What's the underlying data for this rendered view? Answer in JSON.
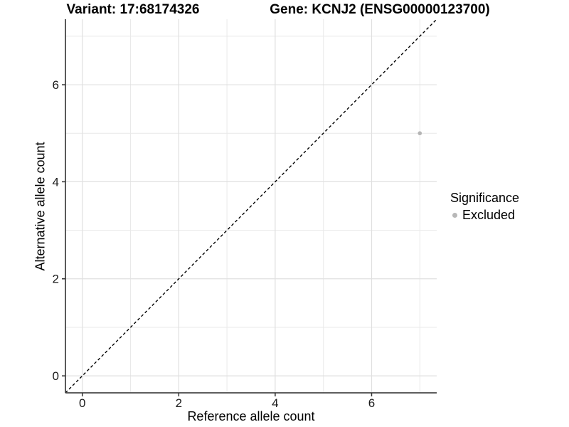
{
  "chart_data": {
    "type": "scatter",
    "title_left": "Variant: 17:68174326",
    "title_right": "Gene: KCNJ2 (ENSG00000123700)",
    "xlabel": "Reference allele count",
    "ylabel": "Alternative allele count",
    "xlim": [
      -0.35,
      7.35
    ],
    "ylim": [
      -0.35,
      7.35
    ],
    "xticks": [
      0,
      2,
      4,
      6
    ],
    "yticks": [
      0,
      2,
      4,
      6
    ],
    "minor_xticks": [
      1,
      3,
      5,
      7
    ],
    "minor_yticks": [
      1,
      3,
      5,
      7
    ],
    "grid": "major+minor",
    "series": [
      {
        "name": "Excluded",
        "color": "#b5b5b5",
        "points": [
          {
            "x": 7,
            "y": 5
          }
        ]
      }
    ],
    "reference_line": {
      "kind": "identity",
      "slope": 1,
      "intercept": 0,
      "linetype": "dashed",
      "color": "#000000"
    },
    "legend": {
      "title": "Significance",
      "position": "right",
      "entries": [
        {
          "label": "Excluded",
          "color": "#b8b8b8"
        }
      ]
    }
  },
  "colors": {
    "background": "#ffffff",
    "grid_major": "#e0e0e0",
    "grid_minor": "#e9e9e9",
    "axis_line": "#474747",
    "tick_mark": "#333333",
    "tick_label": "#1a1a1a",
    "title_text": "#000000",
    "reference_line": "#000000"
  }
}
